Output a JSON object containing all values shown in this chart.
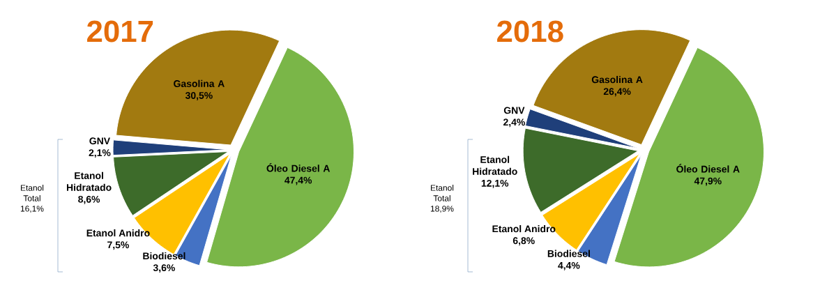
{
  "chart_data": [
    {
      "type": "pie",
      "title": "2017",
      "categories": [
        "Óleo Diesel A",
        "Biodiesel",
        "Etanol Anidro",
        "Etanol Hidratado",
        "GNV",
        "Gasolina A"
      ],
      "values": [
        47.4,
        3.6,
        7.5,
        8.6,
        2.1,
        30.5
      ],
      "value_labels": [
        "47,4%",
        "3,6%",
        "7,5%",
        "8,6%",
        "2,1%",
        "30,5%"
      ],
      "colors": [
        "#7ab648",
        "#4472c4",
        "#ffc000",
        "#3d6b2a",
        "#1f3f7a",
        "#a27a10"
      ],
      "annotations": [
        "Etanol Total 16,1%"
      ]
    },
    {
      "type": "pie",
      "title": "2018",
      "categories": [
        "Óleo Diesel A",
        "Biodiesel",
        "Etanol Anidro",
        "Etanol Hidratado",
        "GNV",
        "Gasolina A"
      ],
      "values": [
        47.9,
        4.4,
        6.8,
        12.1,
        2.4,
        26.4
      ],
      "value_labels": [
        "47,9%",
        "4,4%",
        "6,8%",
        "12,1%",
        "2,4%",
        "26,4%"
      ],
      "colors": [
        "#7ab648",
        "#4472c4",
        "#ffc000",
        "#3d6b2a",
        "#1f3f7a",
        "#a27a10"
      ],
      "annotations": [
        "Etanol Total 18,9%"
      ]
    }
  ]
}
